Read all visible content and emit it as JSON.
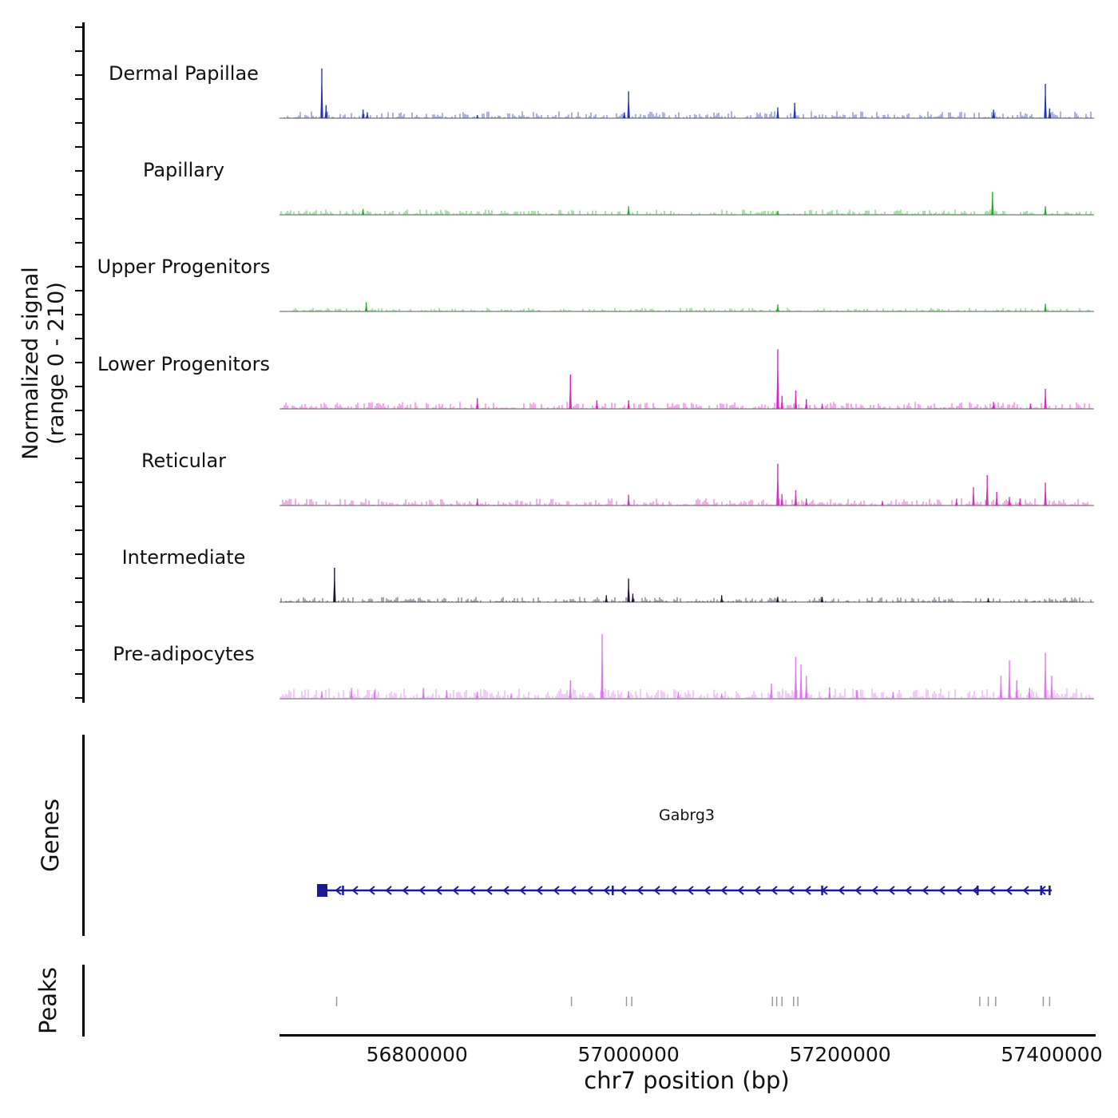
{
  "figure": {
    "y_axis_label_line1": "Normalized signal",
    "y_axis_label_line2": "(range 0 - 210)",
    "genes_label": "Genes",
    "peaks_label": "Peaks"
  },
  "chart_data": {
    "type": "area",
    "title": "",
    "xlabel": "chr7 position (bp)",
    "ylabel": "Normalized signal (range 0 - 210)",
    "x_range_bp": [
      56670000,
      57440000
    ],
    "y_range": [
      0,
      210
    ],
    "x_ticks": [
      56800000,
      57000000,
      57200000,
      57400000
    ],
    "tracks": [
      {
        "label": "Dermal Papillae",
        "color": "#2233bb",
        "noise": 4,
        "peaks": [
          [
            56710000,
            152
          ],
          [
            56714000,
            40
          ],
          [
            56749000,
            26
          ],
          [
            56753000,
            18
          ],
          [
            56857000,
            10
          ],
          [
            56996000,
            18
          ],
          [
            57000000,
            82
          ],
          [
            57141000,
            33
          ],
          [
            57157000,
            47
          ],
          [
            57345000,
            26
          ],
          [
            57394000,
            105
          ],
          [
            57398000,
            30
          ]
        ]
      },
      {
        "label": "Papillary",
        "color": "#22aa22",
        "noise": 3,
        "peaks": [
          [
            56749000,
            18
          ],
          [
            57000000,
            26
          ],
          [
            57141000,
            12
          ],
          [
            57344000,
            70
          ],
          [
            57394000,
            26
          ]
        ]
      },
      {
        "label": "Upper Progenitors",
        "color": "#22aa22",
        "noise": 2,
        "peaks": [
          [
            56752000,
            28
          ],
          [
            57141000,
            21
          ],
          [
            57394000,
            23
          ]
        ]
      },
      {
        "label": "Lower Progenitors",
        "color": "#dd22cc",
        "noise": 4,
        "peaks": [
          [
            56857000,
            33
          ],
          [
            56945000,
            105
          ],
          [
            56970000,
            26
          ],
          [
            57000000,
            26
          ],
          [
            57141000,
            182
          ],
          [
            57145000,
            40
          ],
          [
            57158000,
            56
          ],
          [
            57168000,
            30
          ],
          [
            57183000,
            16
          ],
          [
            57345000,
            21
          ],
          [
            57380000,
            16
          ],
          [
            57394000,
            61
          ]
        ]
      },
      {
        "label": "Reticular",
        "color": "#cc33bb",
        "noise": 4,
        "peaks": [
          [
            56857000,
            21
          ],
          [
            57000000,
            33
          ],
          [
            57141000,
            128
          ],
          [
            57145000,
            35
          ],
          [
            57158000,
            47
          ],
          [
            57168000,
            21
          ],
          [
            57240000,
            14
          ],
          [
            57310000,
            21
          ],
          [
            57326000,
            56
          ],
          [
            57339000,
            93
          ],
          [
            57348000,
            42
          ],
          [
            57360000,
            26
          ],
          [
            57370000,
            21
          ],
          [
            57394000,
            70
          ]
        ]
      },
      {
        "label": "Intermediate",
        "color": "#221133",
        "noise": 3,
        "peaks": [
          [
            56722000,
            105
          ],
          [
            56979000,
            21
          ],
          [
            57000000,
            72
          ],
          [
            57004000,
            26
          ],
          [
            57088000,
            21
          ],
          [
            57141000,
            16
          ],
          [
            57183000,
            16
          ],
          [
            57340000,
            12
          ]
        ]
      },
      {
        "label": "Pre-adipocytes",
        "color": "#dd77ee",
        "noise": 6,
        "peaks": [
          [
            56710000,
            23
          ],
          [
            56738000,
            33
          ],
          [
            56760000,
            26
          ],
          [
            56806000,
            33
          ],
          [
            56828000,
            26
          ],
          [
            56857000,
            21
          ],
          [
            56889000,
            16
          ],
          [
            56945000,
            56
          ],
          [
            56975000,
            198
          ],
          [
            57000000,
            23
          ],
          [
            57047000,
            21
          ],
          [
            57088000,
            16
          ],
          [
            57135000,
            47
          ],
          [
            57158000,
            128
          ],
          [
            57163000,
            105
          ],
          [
            57168000,
            70
          ],
          [
            57190000,
            35
          ],
          [
            57216000,
            26
          ],
          [
            57250000,
            21
          ],
          [
            57352000,
            70
          ],
          [
            57360000,
            117
          ],
          [
            57367000,
            56
          ],
          [
            57379000,
            33
          ],
          [
            57394000,
            140
          ],
          [
            57400000,
            70
          ]
        ]
      }
    ],
    "gene": {
      "name": "Gabrg3",
      "chrom": "chr7",
      "start_bp": 56707000,
      "end_bp": 57400000,
      "strand": "-",
      "exon_ticks_bp": [
        56730000,
        56985000,
        57183000,
        57330000,
        57390000,
        57398000
      ],
      "color": "#1a1a99"
    },
    "peak_calls_bp": [
      56724000,
      56946000,
      56998000,
      57003000,
      57136000,
      57140000,
      57145000,
      57156000,
      57160000,
      57332000,
      57340000,
      57347000,
      57392000,
      57398000
    ]
  }
}
